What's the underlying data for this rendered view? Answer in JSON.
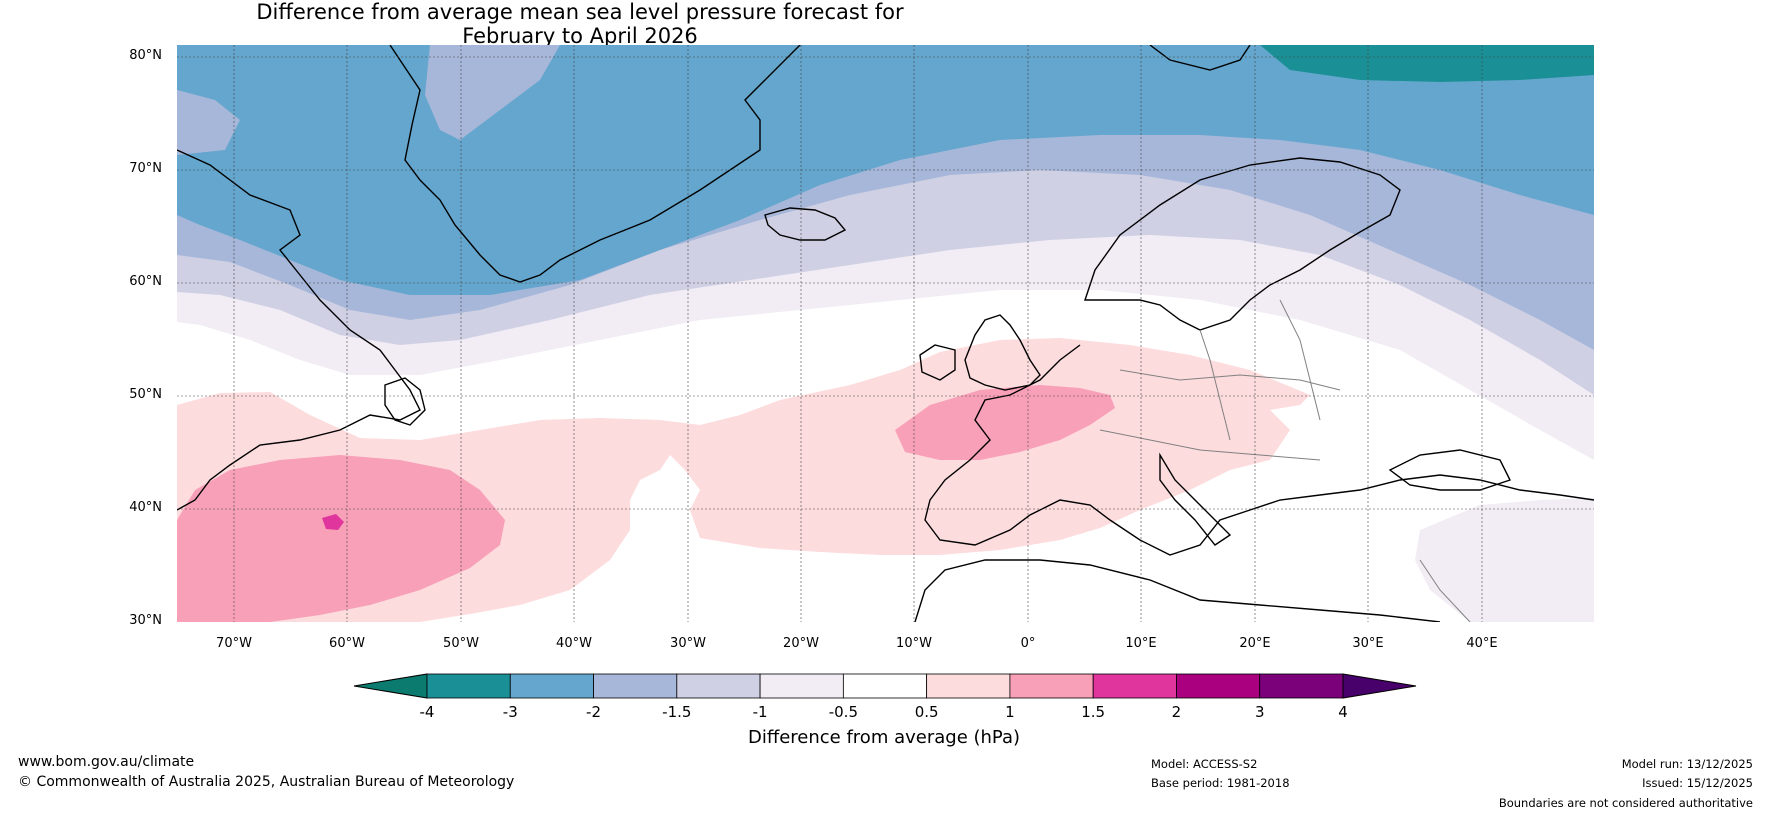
{
  "title_line1": "Difference from average mean sea level pressure forecast for",
  "title_line2": "February to April 2026",
  "map": {
    "lat_labels": [
      "80°N",
      "70°N",
      "60°N",
      "50°N",
      "40°N",
      "30°N"
    ],
    "lon_labels": [
      "70°W",
      "60°W",
      "50°W",
      "40°W",
      "30°W",
      "20°W",
      "10°W",
      "0°",
      "10°E",
      "20°E",
      "30°E",
      "40°E"
    ],
    "colors": {
      "m4": "#0b7a6f",
      "m3": "#1a9096",
      "m2": "#64a6cd",
      "m15": "#a6b7d9",
      "m1": "#d0d0e5",
      "m05": "#f2edf4",
      "zero": "#ffffff",
      "p05": "#fddcdd",
      "p1": "#f8a0b8",
      "p15": "#e0359c",
      "p2": "#aa0080",
      "p3": "#7a017a",
      "p4": "#48006a",
      "land_outline": "#000000",
      "border": "#808080"
    }
  },
  "colorbar": {
    "ticks": [
      "-4",
      "-3",
      "-2",
      "-1.5",
      "-1",
      "-0.5",
      "0.5",
      "1",
      "1.5",
      "2",
      "3",
      "4"
    ],
    "bins": [
      "#1a9096",
      "#64a6cd",
      "#a6b7d9",
      "#d0d0e5",
      "#f2edf4",
      "#ffffff",
      "#fddcdd",
      "#f8a0b8",
      "#e0359c",
      "#aa0080",
      "#7a017a"
    ],
    "extend_low_color": "#0b7a6f",
    "extend_high_color": "#48006a",
    "label": "Difference from average (hPa)"
  },
  "footer": {
    "website": "www.bom.gov.au/climate",
    "copyright": "© Commonwealth of Australia 2025, Australian Bureau of Meteorology",
    "model": "Model: ACCESS-S2",
    "base_period": "Base period: 1981-2018",
    "model_run": "Model run: 13/12/2025",
    "issued": "Issued: 15/12/2025",
    "disclaimer": "Boundaries are not considered authoritative"
  }
}
